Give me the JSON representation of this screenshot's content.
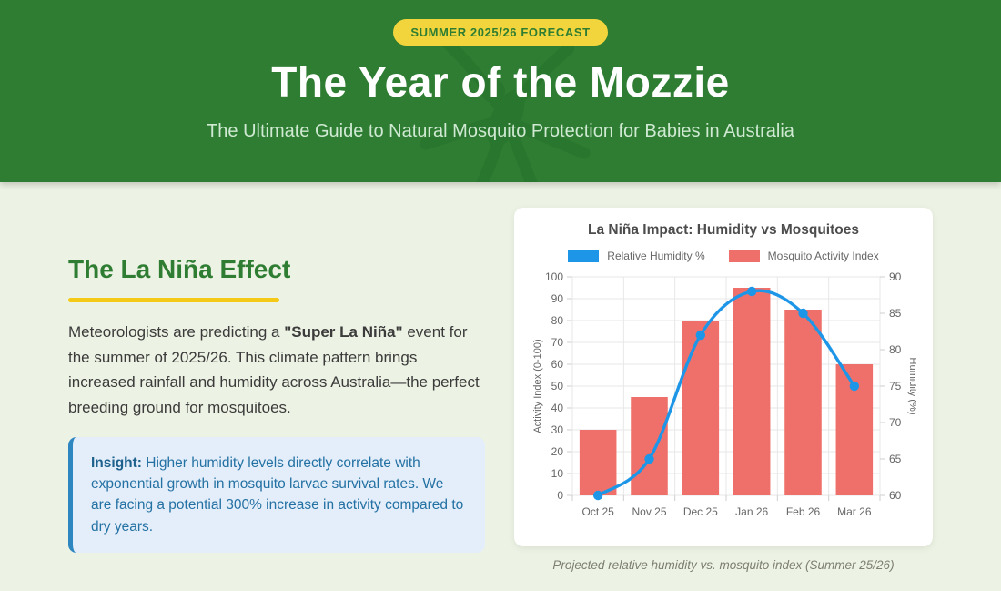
{
  "header": {
    "badge": "SUMMER 2025/26 FORECAST",
    "title": "The Year of the Mozzie",
    "subtitle": "The Ultimate Guide to Natural Mosquito Protection for Babies in Australia",
    "colors": {
      "background": "#2e7d32",
      "badge_bg": "#f2d53c",
      "badge_text": "#2e7d32",
      "subtitle_text": "#cfe9d2"
    }
  },
  "article": {
    "section_heading": "The La Niña Effect",
    "accent_color": "#f4ca16",
    "paragraph": {
      "before": "Meteorologists are predicting a ",
      "bold": "\"Super La Niña\"",
      "after": " event for the summer of 2025/26. This climate pattern brings increased rainfall and humidity across Australia—the perfect breeding ground for mosquitoes."
    },
    "insight": {
      "label": "Insight:",
      "text": " Higher humidity levels directly correlate with exponential growth in mosquito larvae survival rates. We are facing a potential 300% increase in activity compared to dry years."
    }
  },
  "chart_card": {
    "caption": "Projected relative humidity vs. mosquito index (Summer 25/26)"
  },
  "chart_data": {
    "type": "combo-bar-line",
    "title": "La Niña Impact: Humidity vs Mosquitoes",
    "categories": [
      "Oct 25",
      "Nov 25",
      "Dec 25",
      "Jan 26",
      "Feb 26",
      "Mar 26"
    ],
    "series": [
      {
        "name": "Relative Humidity %",
        "type": "line",
        "axis": "right",
        "color": "#1e96e8",
        "values": [
          60,
          65,
          82,
          88,
          85,
          75
        ]
      },
      {
        "name": "Mosquito Activity Index",
        "type": "bar",
        "axis": "left",
        "color": "#ef706a",
        "values": [
          30,
          45,
          80,
          95,
          85,
          60
        ]
      }
    ],
    "left_axis": {
      "label": "Activity Index (0-100)",
      "min": 0,
      "max": 100,
      "step": 10
    },
    "right_axis": {
      "label": "Humidity (%)",
      "min": 60,
      "max": 90,
      "step": 5
    },
    "grid": true,
    "legend_position": "top"
  }
}
